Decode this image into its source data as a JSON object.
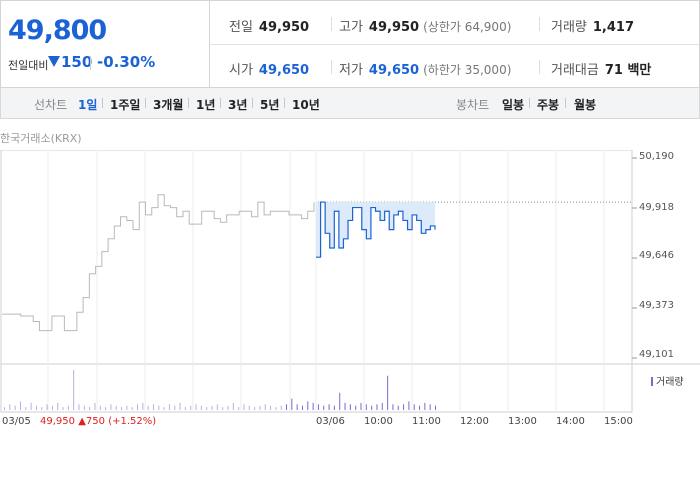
{
  "quote": {
    "price": "49,800",
    "change_label": "전일대비",
    "change_value": "150",
    "change_rate": "-0.30%",
    "prev_close_label": "전일",
    "prev_close": "49,950",
    "high_label": "고가",
    "high": "49,950",
    "upper_limit": "(상한가 64,900)",
    "volume_label": "거래량",
    "volume": "1,417",
    "open_label": "시가",
    "open": "49,650",
    "low_label": "저가",
    "low": "49,650",
    "lower_limit": "(하한가 35,000)",
    "amount_label": "거래대금",
    "amount": "71 백만"
  },
  "line_tabs": {
    "title": "선차트",
    "items": [
      "1일",
      "1주일",
      "3개월",
      "1년",
      "3년",
      "5년",
      "10년"
    ],
    "active": "1일"
  },
  "candle_tabs": {
    "title": "봉차트",
    "items": [
      "일봉",
      "주봉",
      "월봉"
    ]
  },
  "exchange": "한국거래소(KRX)",
  "footer": {
    "date": "03/05",
    "price": "49,950",
    "arrow": "▲",
    "change": "750",
    "rate": "(+1.52%)"
  },
  "volume_legend": "거래량",
  "colors": {
    "down_blue": "#1b63d4",
    "up_red": "#e02020",
    "prev_line": "#b9b9b9",
    "today_fill": "#dceaf9",
    "volume_bar": "#7a6ad0"
  },
  "chart_data": {
    "type": "line",
    "ylim": [
      49101,
      50190
    ],
    "yticks": [
      "50,190",
      "49,918",
      "49,646",
      "49,373",
      "49,101"
    ],
    "xticks": [
      "03/05",
      "03/06",
      "10:00",
      "11:00",
      "12:00",
      "13:00",
      "14:00",
      "15:00"
    ],
    "reference_line": 49950,
    "series": [
      {
        "values": [
          49340,
          49340,
          49340,
          49330,
          49330,
          49300,
          49250,
          49250,
          49330,
          49330,
          49250,
          49250,
          49350,
          49430,
          49560,
          49600,
          49680,
          49750,
          49820,
          49870,
          49850,
          49800,
          49950,
          49880,
          49920,
          49990,
          49930,
          49920,
          49870,
          49900,
          49830,
          49830,
          49900,
          49900,
          49860,
          49840,
          49880,
          49880,
          49900,
          49900,
          49870,
          49950,
          49880,
          49900,
          49900,
          49900,
          49880,
          49880,
          49860,
          49900,
          49950
        ]
      },
      {
        "values": [
          49650,
          49950,
          49780,
          49700,
          49900,
          49700,
          49750,
          49850,
          49920,
          49920,
          49800,
          49750,
          49920,
          49900,
          49850,
          49900,
          49800,
          49880,
          49900,
          49850,
          49800,
          49880,
          49850,
          49780,
          49800,
          49820,
          49800
        ]
      }
    ],
    "volume": [
      2,
      4,
      3,
      6,
      2,
      5,
      3,
      2,
      4,
      3,
      5,
      2,
      3,
      28,
      4,
      3,
      2,
      5,
      3,
      2,
      4,
      3,
      2,
      3,
      2,
      4,
      5,
      3,
      4,
      3,
      2,
      4,
      3,
      5,
      2,
      3,
      4,
      3,
      2,
      3,
      4,
      2,
      3,
      5,
      2,
      4,
      3,
      2,
      3,
      4,
      3,
      2,
      3,
      4,
      8,
      4,
      3,
      6,
      5,
      4,
      3,
      4,
      3,
      12,
      5,
      4,
      3,
      5,
      4,
      3,
      4,
      5,
      24,
      4,
      3,
      4,
      6,
      4,
      3,
      5,
      4,
      3
    ]
  }
}
